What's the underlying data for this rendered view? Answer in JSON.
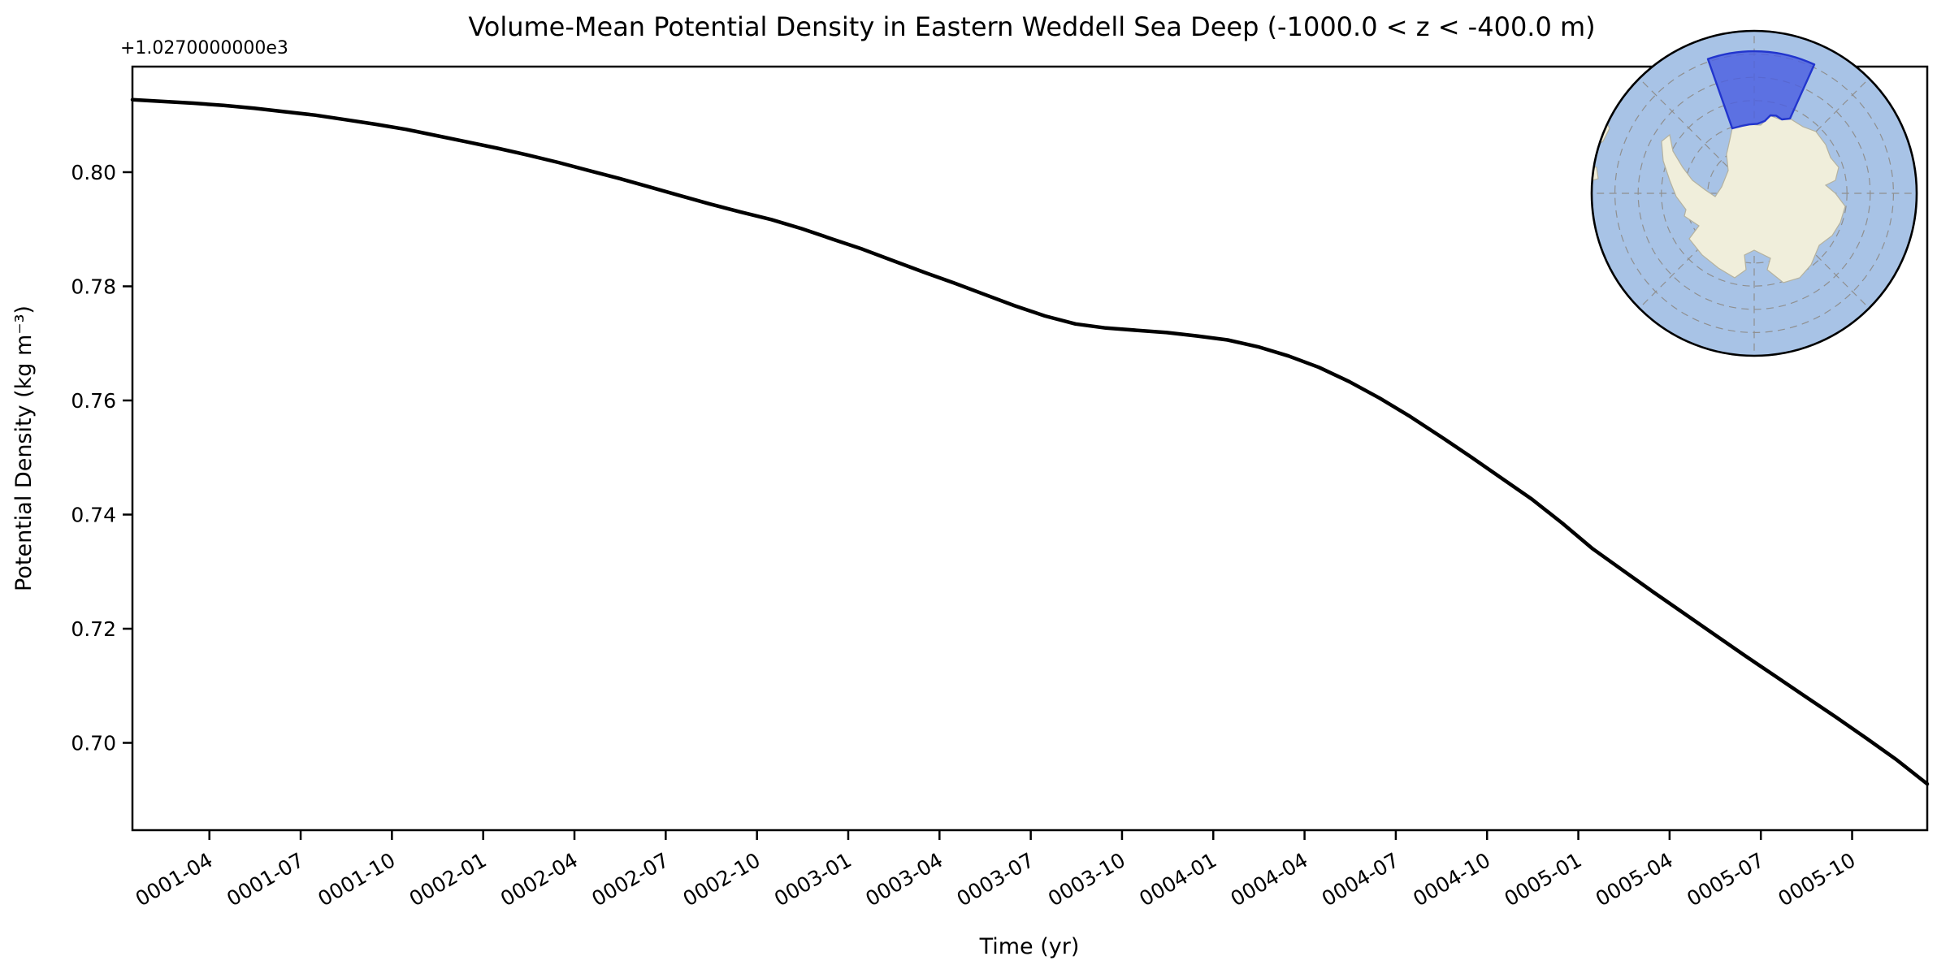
{
  "figure": {
    "background": "#ffffff",
    "title": "Volume-Mean Potential Density in Eastern Weddell Sea Deep (-1000.0 < z < -400.0 m)",
    "offset_text": "+1.0270000000e3",
    "xlabel": "Time (yr)",
    "ylabel": "Potential Density (kg m⁻³)"
  },
  "chart_data": {
    "type": "line",
    "title": "Volume-Mean Potential Density in Eastern Weddell Sea Deep (-1000.0 < z < -400.0 m)",
    "xlabel": "Time (yr)",
    "ylabel": "Potential Density (kg m⁻³)",
    "y_offset_note": "+1.0270000000e3",
    "grid": false,
    "line_color": "#000000",
    "line_width": 4.5,
    "ylim": [
      1027.6847,
      1027.8185
    ],
    "y_ticks": [
      {
        "value": 1027.7,
        "label": "0.70"
      },
      {
        "value": 1027.72,
        "label": "0.72"
      },
      {
        "value": 1027.74,
        "label": "0.74"
      },
      {
        "value": 1027.76,
        "label": "0.76"
      },
      {
        "value": 1027.78,
        "label": "0.78"
      },
      {
        "value": 1027.8,
        "label": "0.80"
      }
    ],
    "x_tick_labels": [
      "0001-04",
      "0001-07",
      "0001-10",
      "0002-01",
      "0002-04",
      "0002-07",
      "0002-10",
      "0003-01",
      "0003-04",
      "0003-07",
      "0003-10",
      "0004-01",
      "0004-04",
      "0004-07",
      "0004-10",
      "0005-01",
      "0005-04",
      "0005-07",
      "0005-10"
    ],
    "series": [
      {
        "name": "volume-mean potential density",
        "months": [
          "0001-01",
          "0001-02",
          "0001-03",
          "0001-04",
          "0001-05",
          "0001-06",
          "0001-07",
          "0001-08",
          "0001-09",
          "0001-10",
          "0001-11",
          "0001-12",
          "0002-01",
          "0002-02",
          "0002-03",
          "0002-04",
          "0002-05",
          "0002-06",
          "0002-07",
          "0002-08",
          "0002-09",
          "0002-10",
          "0002-11",
          "0002-12",
          "0003-01",
          "0003-02",
          "0003-03",
          "0003-04",
          "0003-05",
          "0003-06",
          "0003-07",
          "0003-08",
          "0003-09",
          "0003-10",
          "0003-11",
          "0003-12",
          "0004-01",
          "0004-02",
          "0004-03",
          "0004-04",
          "0004-05",
          "0004-06",
          "0004-07",
          "0004-08",
          "0004-09",
          "0004-10",
          "0004-11",
          "0004-12",
          "0005-01",
          "0005-02",
          "0005-03",
          "0005-04",
          "0005-05",
          "0005-06",
          "0005-07",
          "0005-08",
          "0005-09",
          "0005-10",
          "0005-11",
          "0005-12"
        ],
        "values": [
          1027.8127,
          1027.8124,
          1027.8121,
          1027.8117,
          1027.8112,
          1027.8106,
          1027.81,
          1027.8092,
          1027.8084,
          1027.8075,
          1027.8064,
          1027.8053,
          1027.8042,
          1027.803,
          1027.8017,
          1027.8003,
          1027.7989,
          1027.7974,
          1027.7959,
          1027.7944,
          1027.793,
          1027.7917,
          1027.7901,
          1027.7883,
          1027.7865,
          1027.7845,
          1027.7825,
          1027.7806,
          1027.7786,
          1027.7766,
          1027.7748,
          1027.7734,
          1027.7727,
          1027.7723,
          1027.7719,
          1027.7713,
          1027.7706,
          1027.7694,
          1027.7678,
          1027.7658,
          1027.7633,
          1027.7604,
          1027.7572,
          1027.7537,
          1027.7501,
          1027.7464,
          1027.7427,
          1027.7385,
          1027.734,
          1027.7302,
          1027.7264,
          1027.7227,
          1027.719,
          1027.7153,
          1027.7117,
          1027.7081,
          1027.7045,
          1027.7008,
          1027.697,
          1027.6928
        ]
      }
    ]
  },
  "inset_map": {
    "description": "south-polar-stereographic-antarctica-locator",
    "highlighted_region": "Eastern Weddell Sea sector",
    "colors": {
      "ocean": "#a8c3e6",
      "land": "#f0eedb",
      "highlight_fill": "#4c5fe0",
      "highlight_edge": "#2235cd",
      "graticule": "#8f8f8f",
      "boundary": "#000000"
    }
  }
}
